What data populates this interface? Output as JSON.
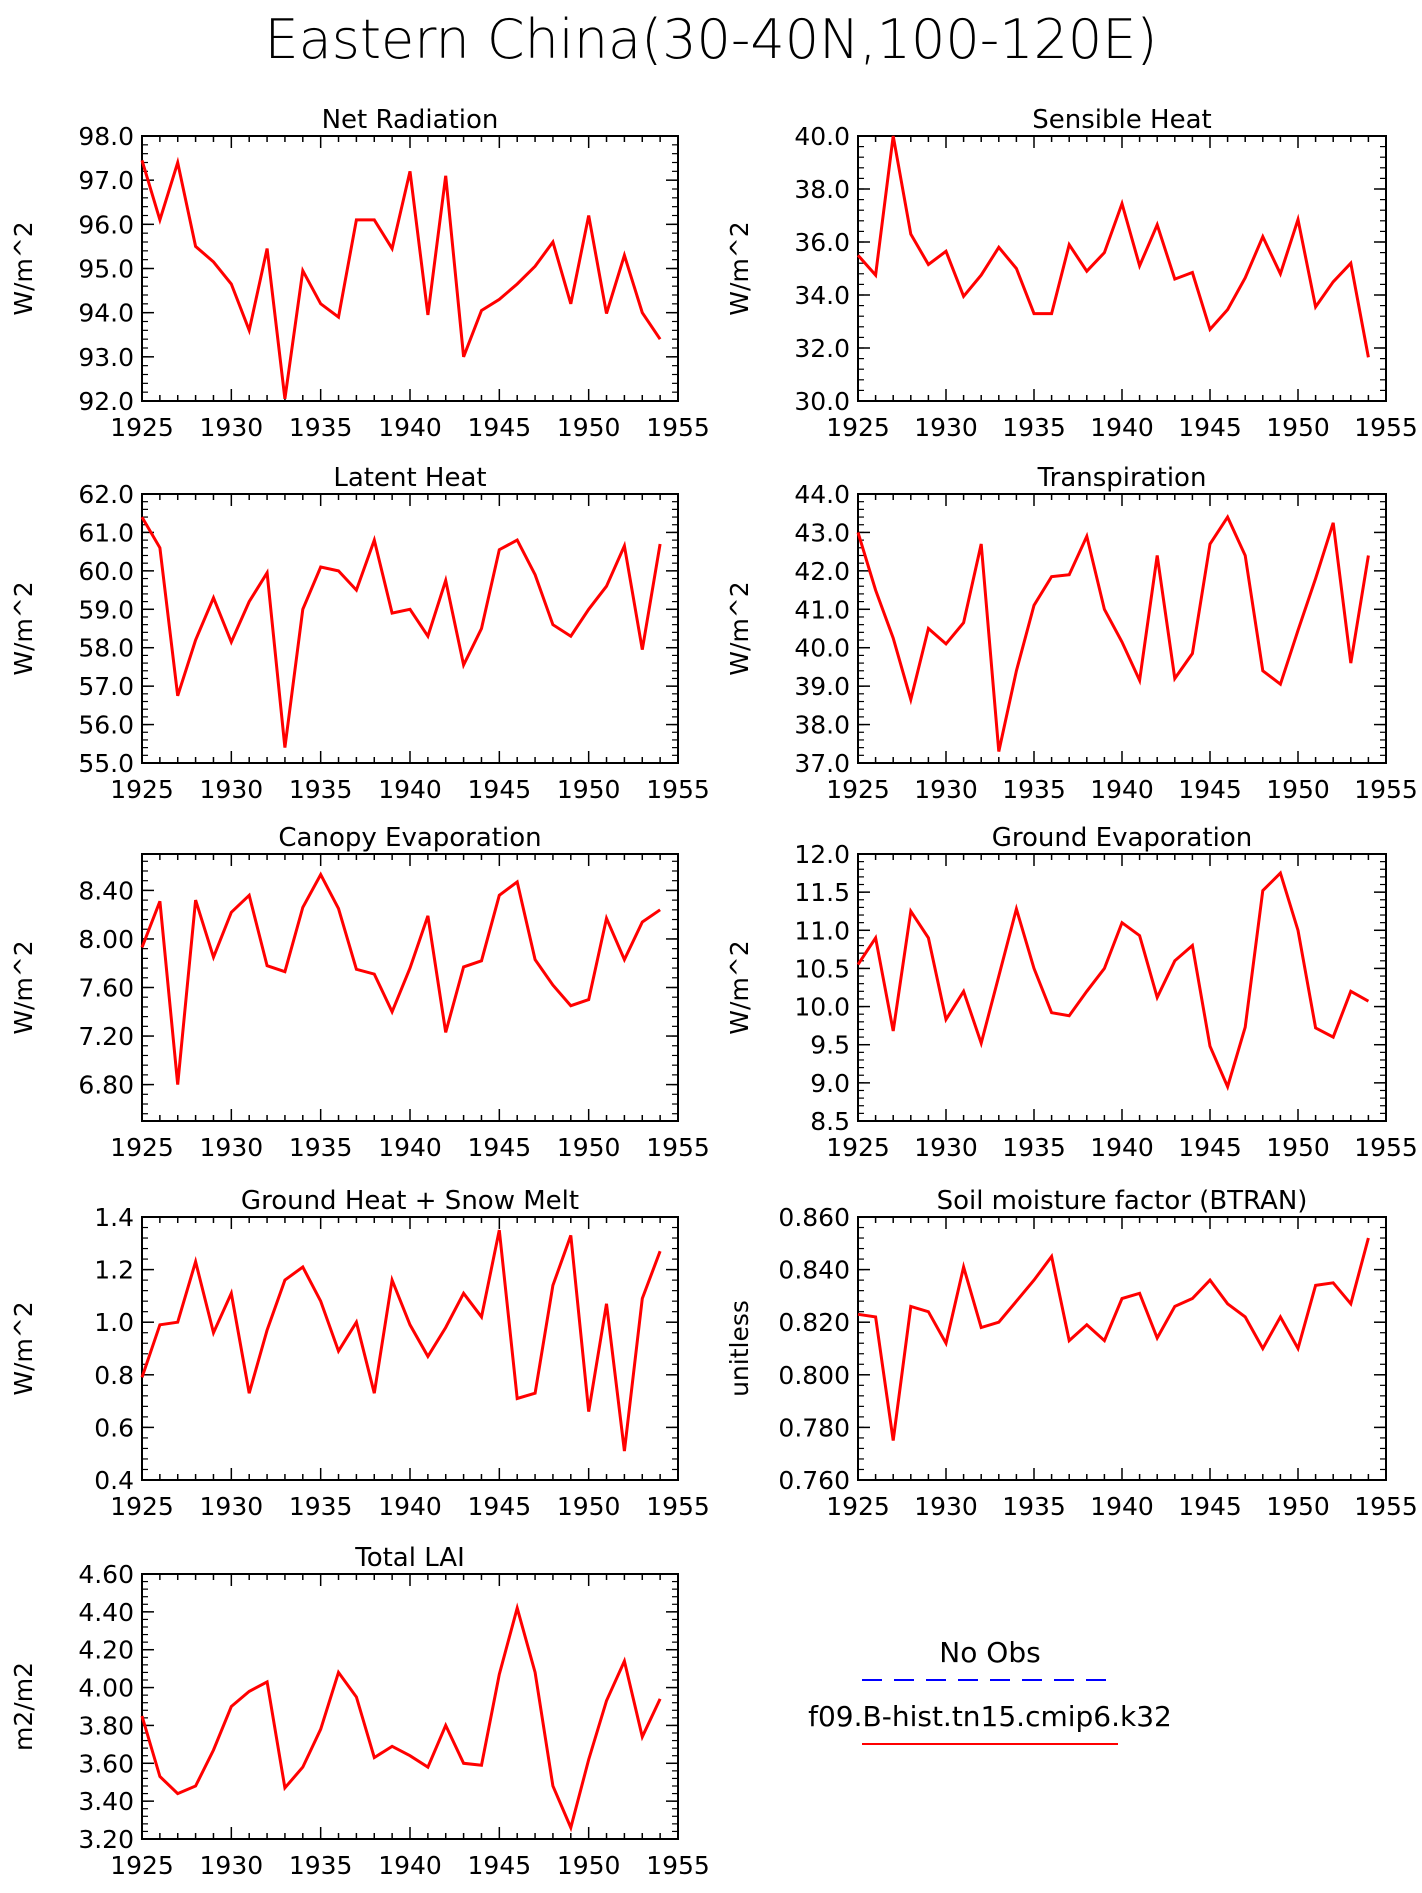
{
  "title": "Eastern China(30-40N,100-120E)",
  "legend": {
    "entries": [
      {
        "label": "No Obs",
        "color": "#0000ff",
        "dash": "dashed"
      },
      {
        "label": "f09.B-hist.tn15.cmip6.k32",
        "color": "#ff0000",
        "dash": "solid"
      }
    ]
  },
  "colors": {
    "series": "#ff0000",
    "obs": "#0000ff"
  },
  "chart_data": [
    {
      "type": "line",
      "title": "Net Radiation",
      "ylabel": "W/m^2",
      "x": [
        1925,
        1926,
        1927,
        1928,
        1929,
        1930,
        1931,
        1932,
        1933,
        1934,
        1935,
        1936,
        1937,
        1938,
        1939,
        1940,
        1941,
        1942,
        1943,
        1944,
        1945,
        1946,
        1947,
        1948,
        1949,
        1950,
        1951,
        1952,
        1953,
        1954
      ],
      "xlim": [
        1925,
        1955
      ],
      "xticks": [
        1925,
        1930,
        1935,
        1940,
        1945,
        1950,
        1955
      ],
      "ylim": [
        92.0,
        98.0
      ],
      "yticks": [
        92.0,
        93.0,
        94.0,
        95.0,
        96.0,
        97.0,
        98.0
      ],
      "ytick_labels": [
        "92.0",
        "93.0",
        "94.0",
        "95.0",
        "96.0",
        "97.0",
        "98.0"
      ],
      "series": [
        {
          "values": [
            97.45,
            96.1,
            97.4,
            95.5,
            95.15,
            94.65,
            93.6,
            95.45,
            92.05,
            94.95,
            94.2,
            93.9,
            96.1,
            96.1,
            95.45,
            97.2,
            93.95,
            97.1,
            93.0,
            94.05,
            94.3,
            94.65,
            95.05,
            95.6,
            94.2,
            96.2,
            93.98,
            95.3,
            94.0,
            93.4
          ]
        }
      ]
    },
    {
      "type": "line",
      "title": "Sensible Heat",
      "ylabel": "W/m^2",
      "x": [
        1925,
        1926,
        1927,
        1928,
        1929,
        1930,
        1931,
        1932,
        1933,
        1934,
        1935,
        1936,
        1937,
        1938,
        1939,
        1940,
        1941,
        1942,
        1943,
        1944,
        1945,
        1946,
        1947,
        1948,
        1949,
        1950,
        1951,
        1952,
        1953,
        1954
      ],
      "xlim": [
        1925,
        1955
      ],
      "xticks": [
        1925,
        1930,
        1935,
        1940,
        1945,
        1950,
        1955
      ],
      "ylim": [
        30.0,
        40.0
      ],
      "yticks": [
        30.0,
        32.0,
        34.0,
        36.0,
        38.0,
        40.0
      ],
      "ytick_labels": [
        "30.0",
        "32.0",
        "34.0",
        "36.0",
        "38.0",
        "40.0"
      ],
      "series": [
        {
          "values": [
            35.5,
            34.75,
            40.0,
            36.3,
            35.15,
            35.65,
            33.95,
            34.75,
            35.8,
            35.0,
            33.3,
            33.3,
            35.9,
            34.9,
            35.6,
            37.45,
            35.1,
            36.65,
            34.6,
            34.85,
            32.7,
            33.45,
            34.65,
            36.2,
            34.8,
            36.85,
            33.55,
            34.5,
            35.2,
            31.65
          ]
        }
      ]
    },
    {
      "type": "line",
      "title": "Latent Heat",
      "ylabel": "W/m^2",
      "x": [
        1925,
        1926,
        1927,
        1928,
        1929,
        1930,
        1931,
        1932,
        1933,
        1934,
        1935,
        1936,
        1937,
        1938,
        1939,
        1940,
        1941,
        1942,
        1943,
        1944,
        1945,
        1946,
        1947,
        1948,
        1949,
        1950,
        1951,
        1952,
        1953,
        1954
      ],
      "xlim": [
        1925,
        1955
      ],
      "xticks": [
        1925,
        1930,
        1935,
        1940,
        1945,
        1950,
        1955
      ],
      "ylim": [
        55.0,
        62.0
      ],
      "yticks": [
        55.0,
        56.0,
        57.0,
        58.0,
        59.0,
        60.0,
        61.0,
        62.0
      ],
      "ytick_labels": [
        "55.0",
        "56.0",
        "57.0",
        "58.0",
        "59.0",
        "60.0",
        "61.0",
        "62.0"
      ],
      "series": [
        {
          "values": [
            61.4,
            60.6,
            56.75,
            58.2,
            59.3,
            58.15,
            59.2,
            59.95,
            55.4,
            59.0,
            60.1,
            60.0,
            59.5,
            60.8,
            58.9,
            59.0,
            58.3,
            59.75,
            57.55,
            58.5,
            60.55,
            60.8,
            59.9,
            58.6,
            58.3,
            59.0,
            59.6,
            60.65,
            57.95,
            60.7
          ]
        }
      ]
    },
    {
      "type": "line",
      "title": "Transpiration",
      "ylabel": "W/m^2",
      "x": [
        1925,
        1926,
        1927,
        1928,
        1929,
        1930,
        1931,
        1932,
        1933,
        1934,
        1935,
        1936,
        1937,
        1938,
        1939,
        1940,
        1941,
        1942,
        1943,
        1944,
        1945,
        1946,
        1947,
        1948,
        1949,
        1950,
        1951,
        1952,
        1953,
        1954
      ],
      "xlim": [
        1925,
        1955
      ],
      "xticks": [
        1925,
        1930,
        1935,
        1940,
        1945,
        1950,
        1955
      ],
      "ylim": [
        37.0,
        44.0
      ],
      "yticks": [
        37.0,
        38.0,
        39.0,
        40.0,
        41.0,
        42.0,
        43.0,
        44.0
      ],
      "ytick_labels": [
        "37.0",
        "38.0",
        "39.0",
        "40.0",
        "41.0",
        "42.0",
        "43.0",
        "44.0"
      ],
      "series": [
        {
          "values": [
            43.0,
            41.5,
            40.25,
            38.65,
            40.5,
            40.1,
            40.65,
            42.7,
            37.3,
            39.4,
            41.1,
            41.85,
            41.9,
            42.9,
            41.0,
            40.15,
            39.15,
            42.4,
            39.2,
            39.85,
            42.7,
            43.4,
            42.4,
            39.4,
            39.05,
            40.45,
            41.8,
            43.25,
            39.6,
            42.4
          ]
        }
      ]
    },
    {
      "type": "line",
      "title": "Canopy Evaporation",
      "ylabel": "W/m^2",
      "x": [
        1925,
        1926,
        1927,
        1928,
        1929,
        1930,
        1931,
        1932,
        1933,
        1934,
        1935,
        1936,
        1937,
        1938,
        1939,
        1940,
        1941,
        1942,
        1943,
        1944,
        1945,
        1946,
        1947,
        1948,
        1949,
        1950,
        1951,
        1952,
        1953,
        1954
      ],
      "xlim": [
        1925,
        1955
      ],
      "xticks": [
        1925,
        1930,
        1935,
        1940,
        1945,
        1950,
        1955
      ],
      "ylim": [
        6.5,
        8.7
      ],
      "yticks": [
        6.8,
        7.2,
        7.6,
        8.0,
        8.4
      ],
      "ytick_labels": [
        "6.80",
        "7.20",
        "7.60",
        "8.00",
        "8.40"
      ],
      "series": [
        {
          "values": [
            7.93,
            8.31,
            6.8,
            8.32,
            7.85,
            8.22,
            8.36,
            7.78,
            7.73,
            8.26,
            8.53,
            8.25,
            7.75,
            7.71,
            7.4,
            7.76,
            8.19,
            7.23,
            7.77,
            7.82,
            8.36,
            8.47,
            7.83,
            7.62,
            7.45,
            7.5,
            8.17,
            7.83,
            8.14,
            8.24
          ]
        }
      ]
    },
    {
      "type": "line",
      "title": "Ground Evaporation",
      "ylabel": "W/m^2",
      "x": [
        1925,
        1926,
        1927,
        1928,
        1929,
        1930,
        1931,
        1932,
        1933,
        1934,
        1935,
        1936,
        1937,
        1938,
        1939,
        1940,
        1941,
        1942,
        1943,
        1944,
        1945,
        1946,
        1947,
        1948,
        1949,
        1950,
        1951,
        1952,
        1953,
        1954
      ],
      "xlim": [
        1925,
        1955
      ],
      "xticks": [
        1925,
        1930,
        1935,
        1940,
        1945,
        1950,
        1955
      ],
      "ylim": [
        8.5,
        12.0
      ],
      "yticks": [
        8.5,
        9.0,
        9.5,
        10.0,
        10.5,
        11.0,
        11.5,
        12.0
      ],
      "ytick_labels": [
        "8.5",
        "9.0",
        "9.5",
        "10.0",
        "10.5",
        "11.0",
        "11.5",
        "12.0"
      ],
      "series": [
        {
          "values": [
            10.55,
            10.9,
            9.68,
            11.25,
            10.9,
            9.83,
            10.2,
            9.52,
            10.4,
            11.28,
            10.5,
            9.92,
            9.88,
            10.2,
            10.5,
            11.1,
            10.93,
            10.12,
            10.6,
            10.8,
            9.48,
            8.95,
            9.73,
            11.52,
            11.75,
            11.0,
            9.72,
            9.6,
            10.2,
            10.07
          ]
        }
      ]
    },
    {
      "type": "line",
      "title": "Ground Heat + Snow Melt",
      "ylabel": "W/m^2",
      "x": [
        1925,
        1926,
        1927,
        1928,
        1929,
        1930,
        1931,
        1932,
        1933,
        1934,
        1935,
        1936,
        1937,
        1938,
        1939,
        1940,
        1941,
        1942,
        1943,
        1944,
        1945,
        1946,
        1947,
        1948,
        1949,
        1950,
        1951,
        1952,
        1953,
        1954
      ],
      "xlim": [
        1925,
        1955
      ],
      "xticks": [
        1925,
        1930,
        1935,
        1940,
        1945,
        1950,
        1955
      ],
      "ylim": [
        0.4,
        1.4
      ],
      "yticks": [
        0.4,
        0.6,
        0.8,
        1.0,
        1.2,
        1.4
      ],
      "ytick_labels": [
        "0.4",
        "0.6",
        "0.8",
        "1.0",
        "1.2",
        "1.4"
      ],
      "series": [
        {
          "values": [
            0.79,
            0.99,
            1.0,
            1.23,
            0.96,
            1.11,
            0.73,
            0.97,
            1.16,
            1.21,
            1.08,
            0.89,
            1.0,
            0.73,
            1.16,
            0.99,
            0.87,
            0.98,
            1.11,
            1.02,
            1.35,
            0.71,
            0.73,
            1.14,
            1.33,
            0.66,
            1.07,
            0.51,
            1.09,
            1.27
          ]
        }
      ]
    },
    {
      "type": "line",
      "title": "Soil moisture factor (BTRAN)",
      "ylabel": "unitless",
      "x": [
        1925,
        1926,
        1927,
        1928,
        1929,
        1930,
        1931,
        1932,
        1933,
        1934,
        1935,
        1936,
        1937,
        1938,
        1939,
        1940,
        1941,
        1942,
        1943,
        1944,
        1945,
        1946,
        1947,
        1948,
        1949,
        1950,
        1951,
        1952,
        1953,
        1954
      ],
      "xlim": [
        1925,
        1955
      ],
      "xticks": [
        1925,
        1930,
        1935,
        1940,
        1945,
        1950,
        1955
      ],
      "ylim": [
        0.76,
        0.86
      ],
      "yticks": [
        0.76,
        0.78,
        0.8,
        0.82,
        0.84,
        0.86
      ],
      "ytick_labels": [
        "0.760",
        "0.780",
        "0.800",
        "0.820",
        "0.840",
        "0.860"
      ],
      "series": [
        {
          "values": [
            0.823,
            0.822,
            0.775,
            0.826,
            0.824,
            0.812,
            0.841,
            0.818,
            0.82,
            0.828,
            0.836,
            0.845,
            0.813,
            0.819,
            0.813,
            0.829,
            0.831,
            0.814,
            0.826,
            0.829,
            0.836,
            0.827,
            0.822,
            0.81,
            0.822,
            0.81,
            0.834,
            0.835,
            0.827,
            0.852
          ]
        }
      ]
    },
    {
      "type": "line",
      "title": "Total LAI",
      "ylabel": "m2/m2",
      "x": [
        1925,
        1926,
        1927,
        1928,
        1929,
        1930,
        1931,
        1932,
        1933,
        1934,
        1935,
        1936,
        1937,
        1938,
        1939,
        1940,
        1941,
        1942,
        1943,
        1944,
        1945,
        1946,
        1947,
        1948,
        1949,
        1950,
        1951,
        1952,
        1953,
        1954
      ],
      "xlim": [
        1925,
        1955
      ],
      "xticks": [
        1925,
        1930,
        1935,
        1940,
        1945,
        1950,
        1955
      ],
      "ylim": [
        3.2,
        4.6
      ],
      "yticks": [
        3.2,
        3.4,
        3.6,
        3.8,
        4.0,
        4.2,
        4.4,
        4.6
      ],
      "ytick_labels": [
        "3.20",
        "3.40",
        "3.60",
        "3.80",
        "4.00",
        "4.20",
        "4.40",
        "4.60"
      ],
      "series": [
        {
          "values": [
            3.85,
            3.53,
            3.44,
            3.48,
            3.67,
            3.9,
            3.98,
            4.03,
            3.47,
            3.58,
            3.78,
            4.08,
            3.95,
            3.63,
            3.69,
            3.64,
            3.58,
            3.8,
            3.6,
            3.59,
            4.07,
            4.42,
            4.08,
            3.48,
            3.26,
            3.62,
            3.93,
            4.14,
            3.74,
            3.94
          ]
        }
      ]
    }
  ]
}
